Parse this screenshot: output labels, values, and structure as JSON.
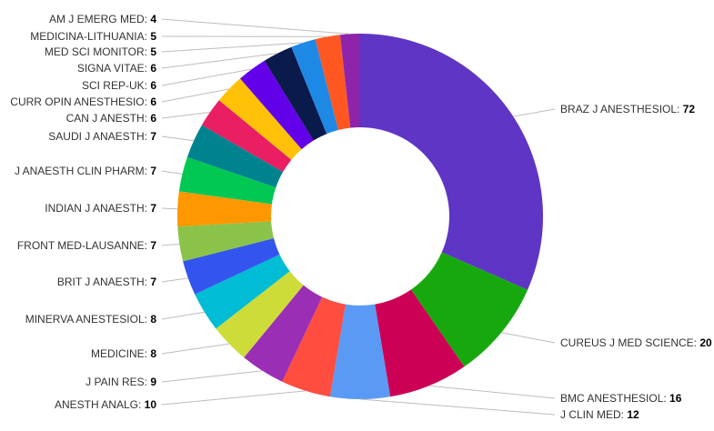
{
  "chart_data": {
    "type": "pie",
    "donut": true,
    "title": "",
    "slices": [
      {
        "label": "BRAZ J ANESTHESIOL",
        "value": 72,
        "color": "#5e35c4"
      },
      {
        "label": "CUREUS J MED SCIENCE",
        "value": 20,
        "color": "#17a80e"
      },
      {
        "label": "BMC ANESTHESIOL",
        "value": 16,
        "color": "#cc0055"
      },
      {
        "label": "J CLIN MED",
        "value": 12,
        "color": "#5a9af5"
      },
      {
        "label": "ANESTH ANALG",
        "value": 10,
        "color": "#ff4d40"
      },
      {
        "label": "J PAIN RES",
        "value": 9,
        "color": "#9a2fb5"
      },
      {
        "label": "MEDICINE",
        "value": 8,
        "color": "#cddc39"
      },
      {
        "label": "MINERVA ANESTESIOL",
        "value": 8,
        "color": "#00bcd4"
      },
      {
        "label": "BRIT J ANAESTH",
        "value": 7,
        "color": "#3355ee"
      },
      {
        "label": "FRONT MED-LAUSANNE",
        "value": 7,
        "color": "#8bc34a"
      },
      {
        "label": "INDIAN J ANAESTH",
        "value": 7,
        "color": "#ff9800"
      },
      {
        "label": "J ANAESTH CLIN PHARM",
        "value": 7,
        "color": "#00c853"
      },
      {
        "label": "SAUDI J ANAESTH",
        "value": 7,
        "color": "#00838f"
      },
      {
        "label": "CAN J ANESTH",
        "value": 6,
        "color": "#e91e63"
      },
      {
        "label": "CURR OPIN ANESTHESIO",
        "value": 6,
        "color": "#ffc107"
      },
      {
        "label": "SCI REP-UK",
        "value": 6,
        "color": "#6200ea"
      },
      {
        "label": "SIGNA VITAE",
        "value": 6,
        "color": "#0a1a4a"
      },
      {
        "label": "MED SCI MONITOR",
        "value": 5,
        "color": "#1e88e5"
      },
      {
        "label": "MEDICINA-LITHUANIA",
        "value": 5,
        "color": "#ff5722"
      },
      {
        "label": "AM J EMERG MED",
        "value": 4,
        "color": "#8e24aa"
      }
    ],
    "legend": "none",
    "labels": "outside-with-leaders"
  }
}
